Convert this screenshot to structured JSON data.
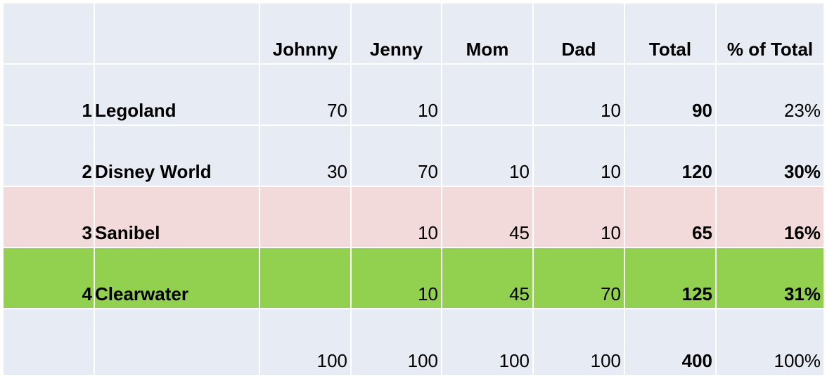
{
  "colors": {
    "default": "#e7ebf4",
    "sanibel": "#f2d9da",
    "clearwater": "#92d050"
  },
  "headers": [
    "Johnny",
    "Jenny",
    "Mom",
    "Dad",
    "Total",
    "% of Total"
  ],
  "rows": [
    {
      "rank": "1",
      "name": "Legoland",
      "values": [
        "70",
        "10",
        "",
        "10"
      ],
      "total": "90",
      "pct": "23%",
      "pct_bold": false,
      "color": "default"
    },
    {
      "rank": "2",
      "name": "Disney World",
      "values": [
        "30",
        "70",
        "10",
        "10"
      ],
      "total": "120",
      "pct": "30%",
      "pct_bold": true,
      "color": "default"
    },
    {
      "rank": "3",
      "name": "Sanibel",
      "values": [
        "",
        "10",
        "45",
        "10"
      ],
      "total": "65",
      "pct": "16%",
      "pct_bold": true,
      "color": "sanibel"
    },
    {
      "rank": "4",
      "name": "Clearwater",
      "values": [
        "",
        "10",
        "45",
        "70"
      ],
      "total": "125",
      "pct": "31%",
      "pct_bold": true,
      "color": "clearwater"
    }
  ],
  "totals": {
    "values": [
      "100",
      "100",
      "100",
      "100"
    ],
    "total": "400",
    "pct": "100%"
  }
}
